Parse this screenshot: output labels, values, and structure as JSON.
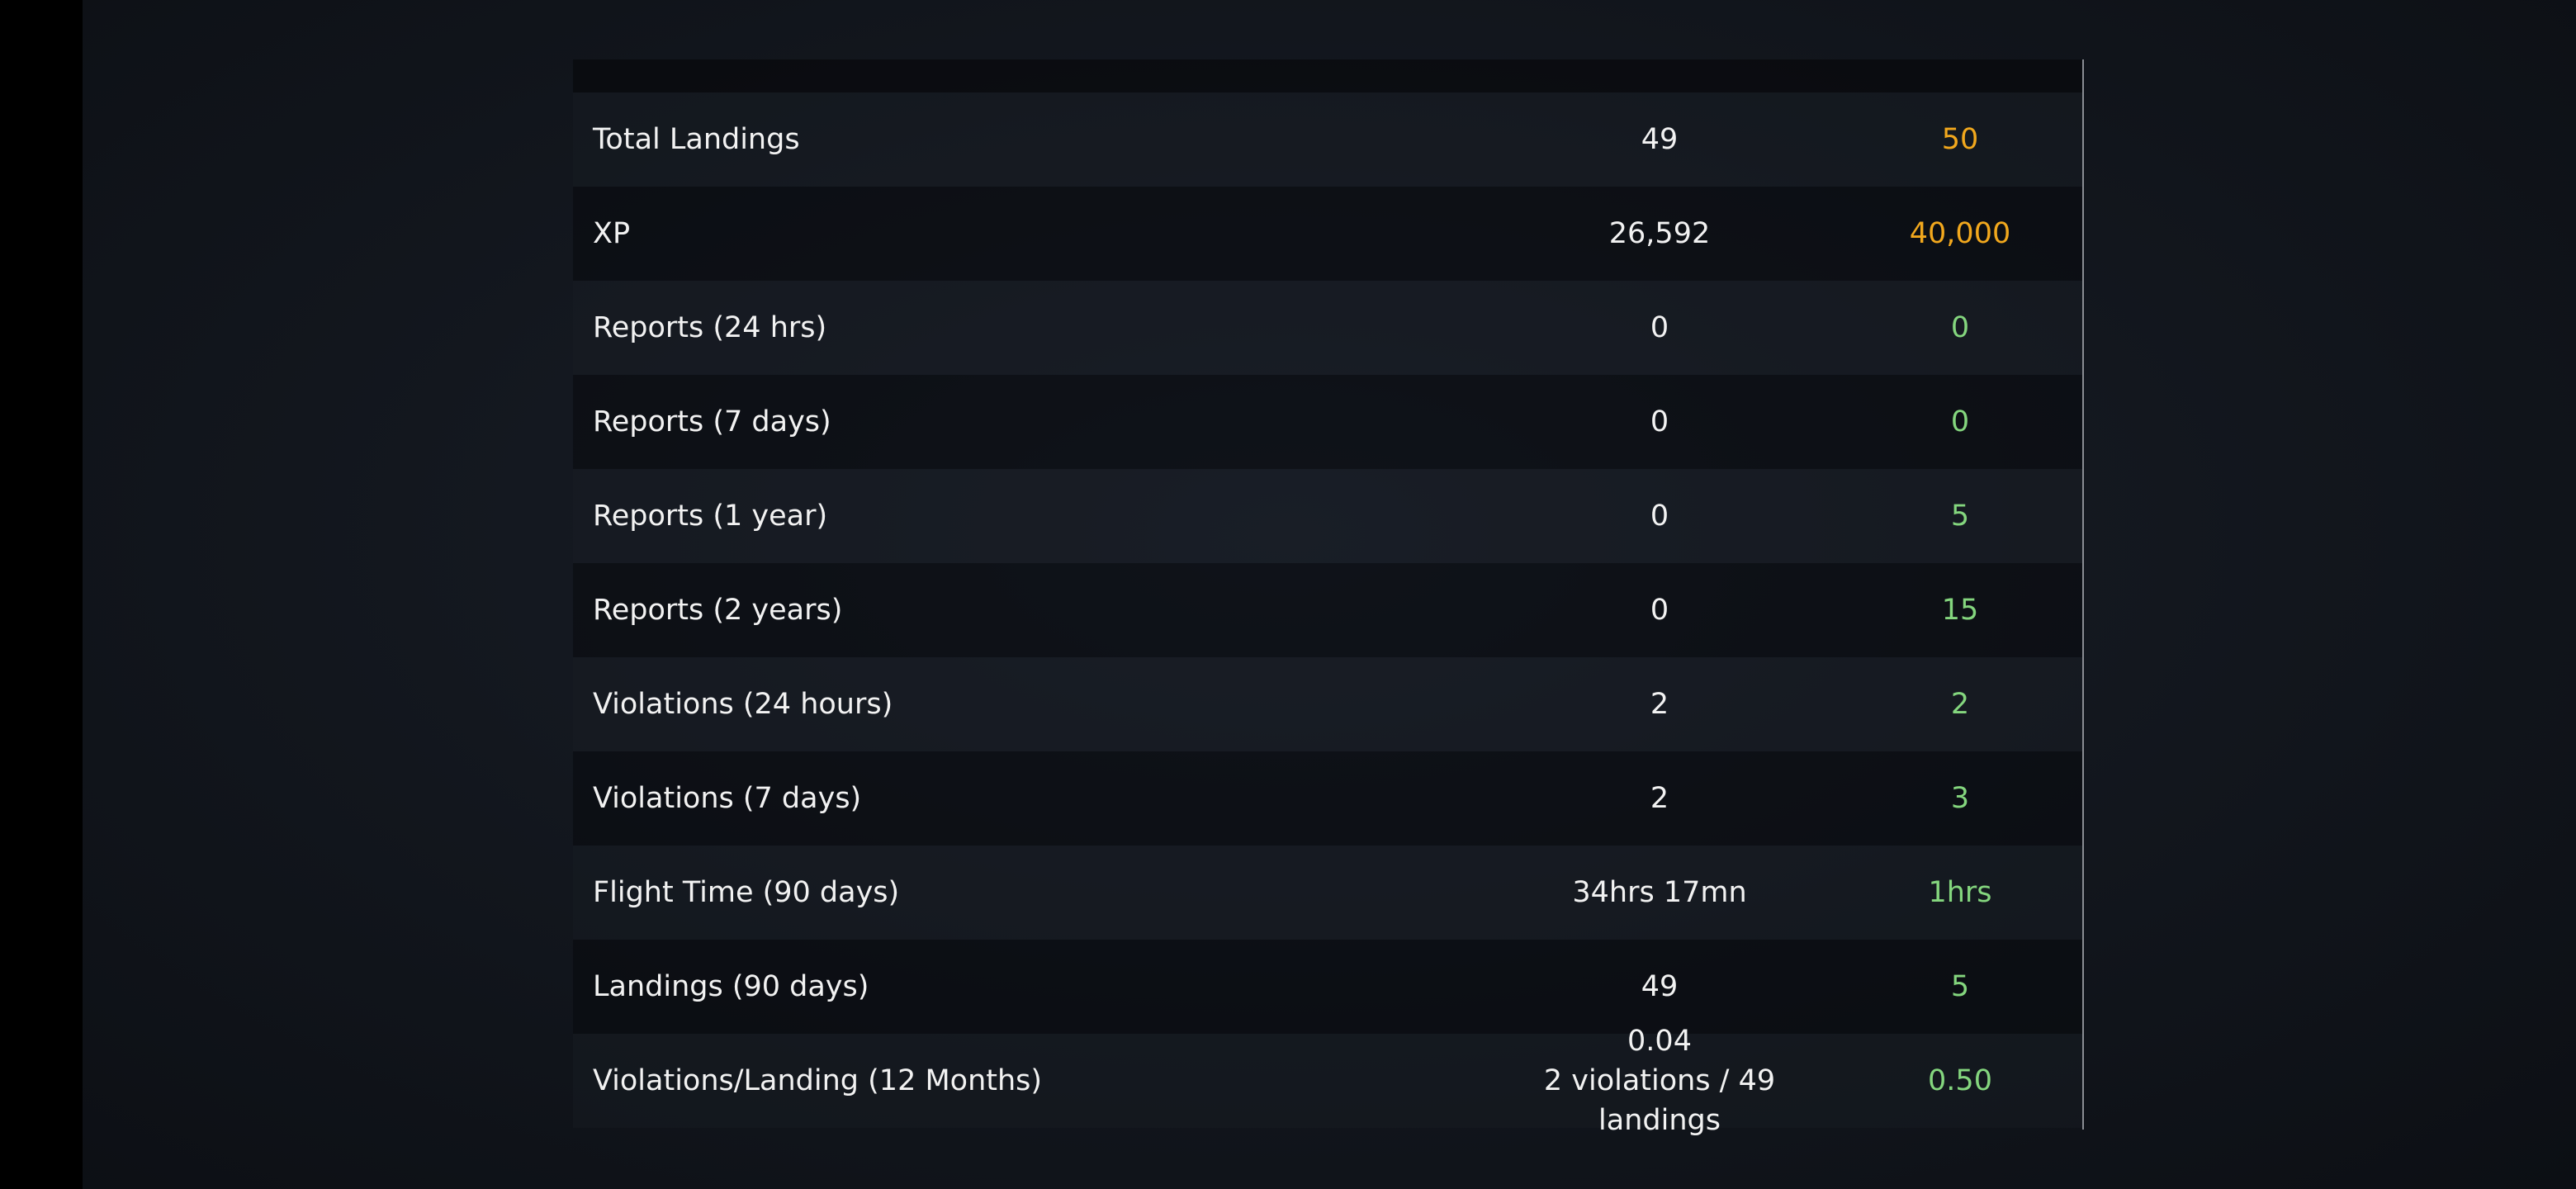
{
  "colors": {
    "warning": "#f2a81d",
    "ok": "#84d67e"
  },
  "rows": [
    {
      "label": "Total Landings",
      "value": "49",
      "required": "50",
      "status": "warning"
    },
    {
      "label": "XP",
      "value": "26,592",
      "required": "40,000",
      "status": "warning"
    },
    {
      "label": "Reports (24 hrs)",
      "value": "0",
      "required": "0",
      "status": "ok"
    },
    {
      "label": "Reports (7 days)",
      "value": "0",
      "required": "0",
      "status": "ok"
    },
    {
      "label": "Reports (1 year)",
      "value": "0",
      "required": "5",
      "status": "ok"
    },
    {
      "label": "Reports (2 years)",
      "value": "0",
      "required": "15",
      "status": "ok"
    },
    {
      "label": "Violations (24 hours)",
      "value": "2",
      "required": "2",
      "status": "ok"
    },
    {
      "label": "Violations (7 days)",
      "value": "2",
      "required": "3",
      "status": "ok"
    },
    {
      "label": "Flight Time (90 days)",
      "value": "34hrs 17mn",
      "required": "1hrs",
      "status": "ok"
    },
    {
      "label": "Landings (90 days)",
      "value": "49",
      "required": "5",
      "status": "ok"
    },
    {
      "label": "Violations/Landing (12 Months)",
      "value": "0.04",
      "value_detail": "2 violations / 49 landings",
      "required": "0.50",
      "status": "ok"
    }
  ]
}
